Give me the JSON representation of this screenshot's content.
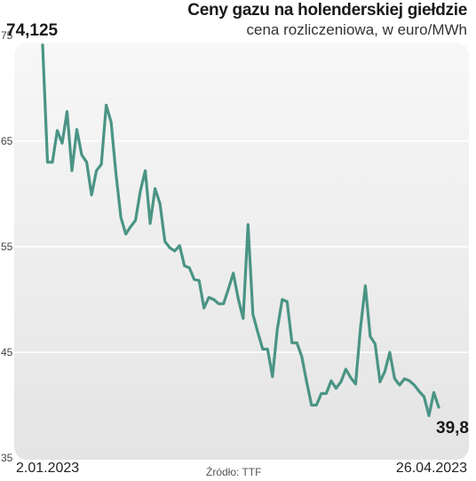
{
  "header": {
    "title": "Ceny gazu na holenderskiej giełdzie",
    "subtitle": "cena rozliczeniowa, w euro/MWh"
  },
  "footer": {
    "source": "Źródło: TTF"
  },
  "chart_data": {
    "type": "line",
    "title": "Ceny gazu na holenderskiej giełdzie",
    "subtitle": "cena rozliczeniowa, w euro/MWh",
    "xlabel": "",
    "ylabel": "",
    "ylim": [
      35,
      75
    ],
    "yticks": [
      "35",
      "45",
      "55",
      "65",
      "75"
    ],
    "x_start": "2.01.2023",
    "x_end": "26.04.2023",
    "first_value_label": "74,125",
    "last_value_label": "39,8",
    "grid": true,
    "line_color": "#4a9485",
    "series": [
      {
        "values": [
          74.1,
          63.0,
          63.0,
          66.0,
          64.8,
          67.8,
          62.2,
          66.1,
          63.7,
          63.0,
          59.9,
          62.2,
          62.8,
          68.4,
          66.8,
          61.9,
          57.8,
          56.2,
          56.9,
          57.5,
          60.3,
          62.2,
          57.2,
          60.5,
          59.1,
          55.5,
          54.9,
          54.6,
          55.1,
          53.2,
          53.0,
          51.9,
          51.8,
          49.2,
          50.2,
          50.0,
          49.6,
          49.6,
          51.0,
          52.5,
          50.1,
          48.2,
          57.1,
          48.6,
          46.9,
          45.3,
          45.3,
          42.7,
          47.2,
          50.0,
          49.8,
          45.9,
          45.9,
          44.6,
          42.2,
          40.0,
          40.0,
          41.1,
          41.1,
          42.3,
          41.6,
          42.2,
          43.4,
          42.6,
          42.0,
          47.3,
          51.3,
          46.5,
          45.8,
          42.2,
          43.2,
          45.0,
          42.5,
          41.9,
          42.5,
          42.3,
          41.9,
          41.3,
          40.8,
          39.0,
          41.2,
          39.8
        ]
      }
    ]
  }
}
